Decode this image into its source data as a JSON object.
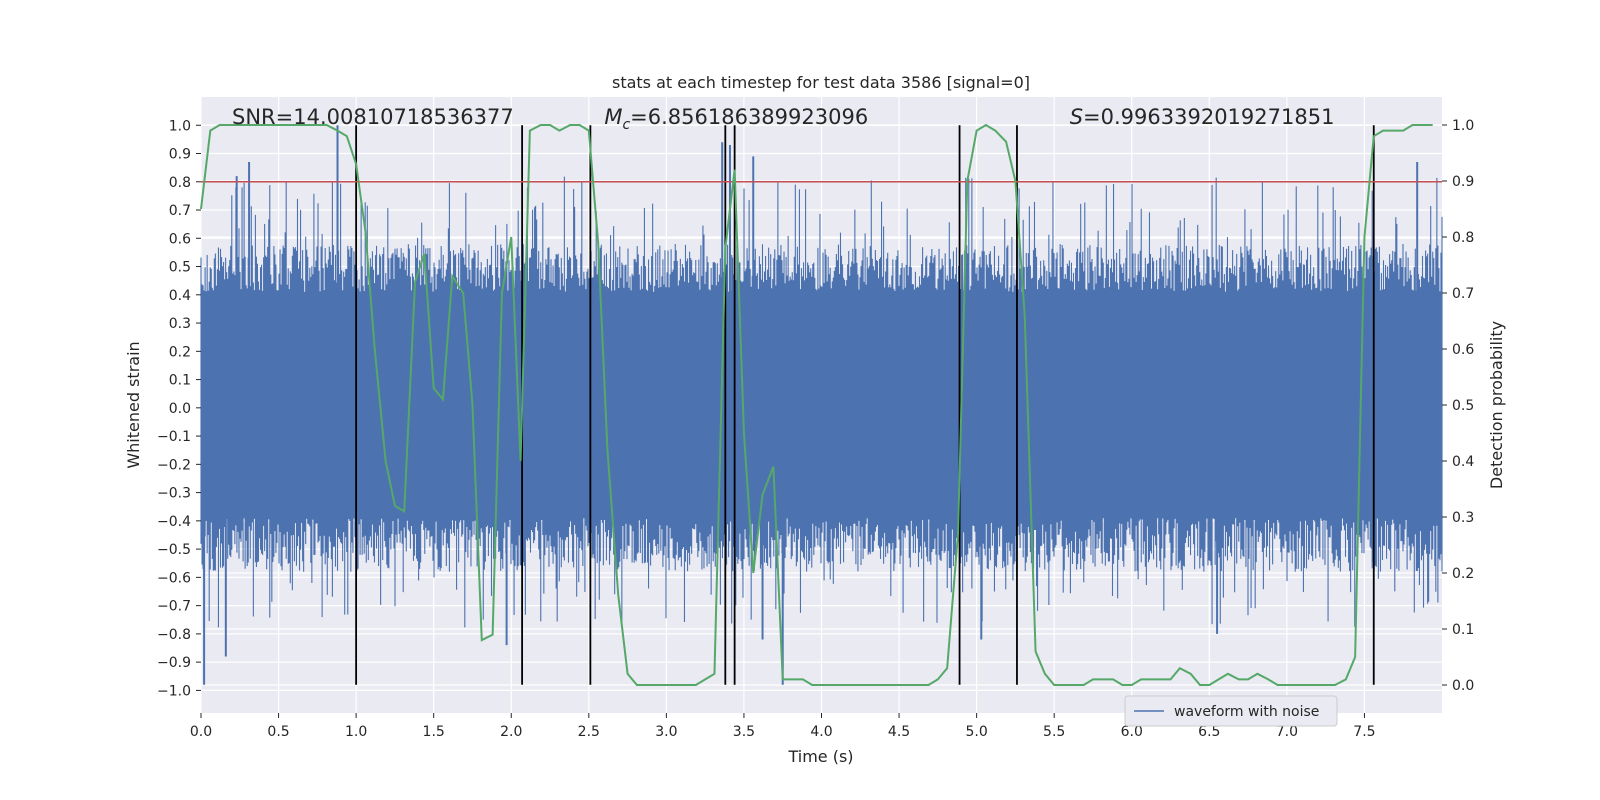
{
  "chart_data": {
    "type": "line",
    "title": "stats at each timestep for test data 3586 [signal=0]",
    "xlabel": "Time (s)",
    "ylabel_left": "Whitened strain",
    "ylabel_right": "Detection probability",
    "xlim": [
      0,
      8
    ],
    "ylim_left": [
      -1.08,
      1.1
    ],
    "ylim_right": [
      -0.05,
      1.05
    ],
    "x_ticks": [
      0.0,
      0.5,
      1.0,
      1.5,
      2.0,
      2.5,
      3.0,
      3.5,
      4.0,
      4.5,
      5.0,
      5.5,
      6.0,
      6.5,
      7.0,
      7.5
    ],
    "x_tick_labels": [
      "0.0",
      "0.5",
      "1.0",
      "1.5",
      "2.0",
      "2.5",
      "3.0",
      "3.5",
      "4.0",
      "4.5",
      "5.0",
      "5.5",
      "6.0",
      "6.5",
      "7.0",
      "7.5"
    ],
    "y_left_ticks": [
      -1.0,
      -0.9,
      -0.8,
      -0.7,
      -0.6,
      -0.5,
      -0.4,
      -0.3,
      -0.2,
      -0.1,
      0.0,
      0.1,
      0.2,
      0.3,
      0.4,
      0.5,
      0.6,
      0.7,
      0.8,
      0.9,
      1.0
    ],
    "y_left_tick_labels": [
      "−1.0",
      "−0.9",
      "−0.8",
      "−0.7",
      "−0.6",
      "−0.5",
      "−0.4",
      "−0.3",
      "−0.2",
      "−0.1",
      "0.0",
      "0.1",
      "0.2",
      "0.3",
      "0.4",
      "0.5",
      "0.6",
      "0.7",
      "0.8",
      "0.9",
      "1.0"
    ],
    "y_right_ticks": [
      0.0,
      0.1,
      0.2,
      0.3,
      0.4,
      0.5,
      0.6,
      0.7,
      0.8,
      0.9,
      1.0
    ],
    "y_right_tick_labels": [
      "0.0",
      "0.1",
      "0.2",
      "0.3",
      "0.4",
      "0.5",
      "0.6",
      "0.7",
      "0.8",
      "0.9",
      "1.0"
    ],
    "annotations": [
      {
        "id": "snr",
        "text": "SNR=14.00810718536377",
        "x": 0.2
      },
      {
        "id": "mc",
        "prefix": "M",
        "subscript": "c",
        "suffix": "=6.856186389923096",
        "x": 2.6
      },
      {
        "id": "s",
        "prefix": "S",
        "suffix": "=0.9963392019271851",
        "x": 5.6
      }
    ],
    "threshold": {
      "value": 0.8,
      "color": "#c44e52"
    },
    "vertical_lines": [
      1.0,
      2.07,
      2.51,
      3.38,
      3.44,
      4.89,
      5.26,
      7.56
    ],
    "vertical_line_range": [
      -0.98,
      1.0
    ],
    "waveform": {
      "name": "waveform with noise",
      "color": "#4c72b0",
      "n_points": 1210,
      "dense_band": [
        -0.39,
        0.41
      ],
      "outer_band": [
        -0.58,
        0.58
      ],
      "peaks": [
        {
          "x": 0.88,
          "y": 1.0
        },
        {
          "x": 0.23,
          "y": 0.82
        },
        {
          "x": 0.31,
          "y": 0.87
        },
        {
          "x": 3.36,
          "y": 0.94
        },
        {
          "x": 3.41,
          "y": 0.93
        },
        {
          "x": 3.56,
          "y": 0.89
        },
        {
          "x": 7.84,
          "y": 0.87
        },
        {
          "x": 0.02,
          "y": -0.98
        },
        {
          "x": 0.16,
          "y": -0.88
        },
        {
          "x": 1.97,
          "y": -0.84
        },
        {
          "x": 3.75,
          "y": -0.98
        },
        {
          "x": 3.62,
          "y": -0.82
        },
        {
          "x": 5.03,
          "y": -0.82
        },
        {
          "x": 6.55,
          "y": -0.8
        }
      ]
    },
    "series": [
      {
        "name": "detection probability",
        "color": "#55a868",
        "x": [
          0.0,
          0.06,
          0.12,
          0.19,
          0.25,
          0.31,
          0.38,
          0.44,
          0.5,
          0.56,
          0.62,
          0.69,
          0.75,
          0.81,
          0.88,
          0.94,
          1.0,
          1.06,
          1.12,
          1.19,
          1.25,
          1.31,
          1.38,
          1.44,
          1.5,
          1.56,
          1.62,
          1.69,
          1.75,
          1.81,
          1.88,
          1.94,
          2.0,
          2.06,
          2.12,
          2.19,
          2.25,
          2.31,
          2.38,
          2.44,
          2.5,
          2.56,
          2.62,
          2.69,
          2.75,
          2.81,
          2.88,
          2.94,
          3.0,
          3.06,
          3.12,
          3.19,
          3.25,
          3.31,
          3.38,
          3.44,
          3.5,
          3.56,
          3.62,
          3.69,
          3.75,
          3.81,
          3.88,
          3.94,
          4.0,
          4.06,
          4.12,
          4.19,
          4.25,
          4.31,
          4.38,
          4.44,
          4.5,
          4.56,
          4.62,
          4.69,
          4.75,
          4.81,
          4.88,
          4.94,
          5.0,
          5.06,
          5.12,
          5.19,
          5.25,
          5.31,
          5.38,
          5.44,
          5.5,
          5.56,
          5.62,
          5.69,
          5.75,
          5.81,
          5.88,
          5.94,
          6.0,
          6.06,
          6.12,
          6.19,
          6.25,
          6.31,
          6.38,
          6.44,
          6.5,
          6.56,
          6.62,
          6.69,
          6.75,
          6.81,
          6.88,
          6.94,
          7.0,
          7.06,
          7.12,
          7.19,
          7.25,
          7.31,
          7.38,
          7.44,
          7.5,
          7.56,
          7.62,
          7.69,
          7.75,
          7.81,
          7.88,
          7.94
        ],
        "values": [
          0.85,
          0.99,
          1.0,
          1.0,
          1.0,
          1.0,
          1.0,
          1.0,
          1.0,
          1.0,
          1.0,
          1.0,
          1.0,
          1.0,
          0.99,
          0.98,
          0.93,
          0.81,
          0.6,
          0.4,
          0.32,
          0.31,
          0.72,
          0.77,
          0.53,
          0.51,
          0.73,
          0.7,
          0.5,
          0.08,
          0.09,
          0.7,
          0.8,
          0.4,
          0.99,
          1.0,
          1.0,
          0.99,
          1.0,
          1.0,
          0.99,
          0.79,
          0.42,
          0.16,
          0.02,
          0.0,
          0.0,
          0.0,
          0.0,
          0.0,
          0.0,
          0.0,
          0.01,
          0.02,
          0.78,
          0.92,
          0.45,
          0.2,
          0.34,
          0.39,
          0.01,
          0.01,
          0.01,
          0.0,
          0.0,
          0.0,
          0.0,
          0.0,
          0.0,
          0.0,
          0.0,
          0.0,
          0.0,
          0.0,
          0.0,
          0.0,
          0.01,
          0.03,
          0.27,
          0.9,
          0.99,
          1.0,
          0.99,
          0.97,
          0.9,
          0.66,
          0.06,
          0.02,
          0.0,
          0.0,
          0.0,
          0.0,
          0.01,
          0.01,
          0.01,
          0.0,
          0.0,
          0.01,
          0.01,
          0.01,
          0.01,
          0.03,
          0.02,
          0.0,
          0.0,
          0.01,
          0.02,
          0.01,
          0.01,
          0.02,
          0.01,
          0.0,
          0.0,
          0.0,
          0.0,
          0.0,
          0.0,
          0.0,
          0.01,
          0.05,
          0.8,
          0.98,
          0.99,
          0.99,
          0.99,
          1.0,
          1.0,
          1.0
        ]
      }
    ],
    "legend": {
      "position": "bottom-right",
      "entries": [
        "waveform with noise"
      ]
    }
  }
}
